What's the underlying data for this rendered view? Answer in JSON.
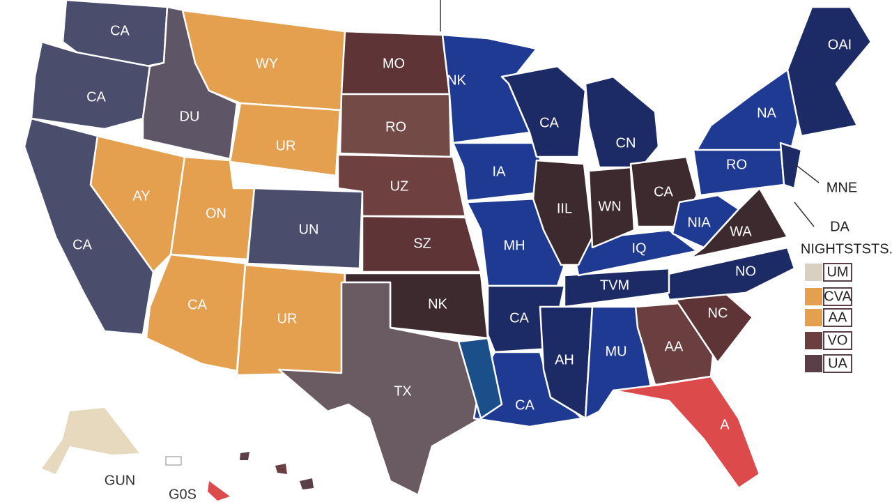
{
  "states": [
    {
      "label": "CA"
    },
    {
      "label": "CA"
    },
    {
      "label": "CA"
    },
    {
      "label": "AY"
    },
    {
      "label": "DU"
    },
    {
      "label": "WY"
    },
    {
      "label": "UR"
    },
    {
      "label": "ON"
    },
    {
      "label": "UN"
    },
    {
      "label": "CA"
    },
    {
      "label": "UR"
    },
    {
      "label": "MO"
    },
    {
      "label": "RO"
    },
    {
      "label": "UZ"
    },
    {
      "label": "SZ"
    },
    {
      "label": "NK"
    },
    {
      "label": "TX"
    },
    {
      "label": "NK"
    },
    {
      "label": "IA"
    },
    {
      "label": "MH"
    },
    {
      "label": "CA"
    },
    {
      "label": "CA"
    },
    {
      "label": "AH"
    },
    {
      "label": "MU"
    },
    {
      "label": "AA"
    },
    {
      "label": "A"
    },
    {
      "label": "NC"
    },
    {
      "label": "NO"
    },
    {
      "label": "TVM"
    },
    {
      "label": "IQ"
    },
    {
      "label": "CA"
    },
    {
      "label": "CN"
    },
    {
      "label": "IIL"
    },
    {
      "label": "WN"
    },
    {
      "label": "CA"
    },
    {
      "label": "RO"
    },
    {
      "label": "NIA"
    },
    {
      "label": "WA"
    },
    {
      "label": "NA"
    },
    {
      "label": "OAI"
    }
  ],
  "callouts": [
    "MNE",
    "DA"
  ],
  "legend": {
    "title": "NIGHTSTSTS.",
    "items": [
      "UM",
      "CVA",
      "AA",
      "VO",
      "UA"
    ]
  },
  "insets": [
    "GUN",
    "G0S"
  ]
}
